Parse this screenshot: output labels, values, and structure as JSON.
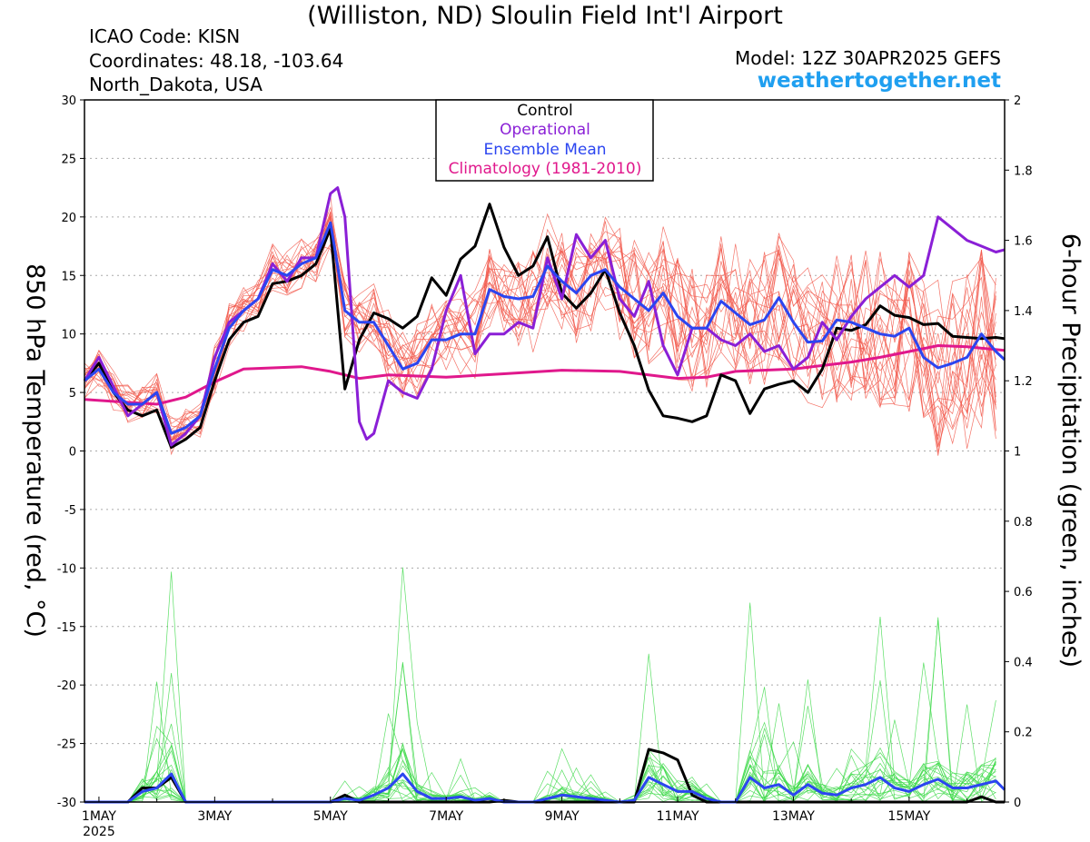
{
  "header": {
    "title": "(Williston, ND) Sloulin Field Int'l Airport",
    "icao": "ICAO Code: KISN",
    "coordinates": "Coordinates: 48.18, -103.64",
    "region": "North_Dakota, USA",
    "model": "Model: 12Z 30APR2025 GEFS",
    "site": "weathertogether.net"
  },
  "colors": {
    "control": "#000000",
    "operational": "#8a1fd6",
    "ensemble_mean": "#2b45f0",
    "climatology": "#e0188c",
    "member_temp": "#f25a4e",
    "member_precip": "#3ed94a",
    "site": "#1f9ff0"
  },
  "chart_data": {
    "type": "line",
    "x_axis": {
      "tick_labels": [
        "1MAY",
        "3MAY",
        "5MAY",
        "7MAY",
        "9MAY",
        "11MAY",
        "13MAY",
        "15MAY"
      ],
      "tick_days": [
        1,
        3,
        5,
        7,
        9,
        11,
        13,
        15
      ],
      "sub_label": "2025",
      "range_days": [
        0.75,
        16.65
      ]
    },
    "y_left": {
      "label": "850 hPa Temperature (red, °C)",
      "range": [
        -30,
        30
      ],
      "ticks": [
        30,
        25,
        20,
        15,
        10,
        5,
        0,
        -5,
        -10,
        -15,
        -20,
        -25,
        -30
      ]
    },
    "y_right": {
      "label": "6-hour Precipitation (green, inches)",
      "range": [
        0,
        2
      ],
      "ticks": [
        2,
        1.8,
        1.6,
        1.4,
        1.2,
        1,
        0.8,
        0.6,
        0.4,
        0.2,
        0
      ]
    },
    "grid": true,
    "legend": {
      "position": "top-center",
      "entries": [
        "Control",
        "Operational",
        "Ensemble Mean",
        "Climatology (1981-2010)"
      ]
    },
    "series": [
      {
        "name": "Control",
        "axis": "left",
        "x": [
          0.75,
          1.0,
          1.25,
          1.5,
          1.75,
          2.0,
          2.25,
          2.5,
          2.75,
          3.0,
          3.25,
          3.5,
          3.75,
          4.0,
          4.25,
          4.5,
          4.75,
          5.0,
          5.25,
          5.5,
          5.75,
          6.0,
          6.25,
          6.5,
          6.75,
          7.0,
          7.25,
          7.5,
          7.75,
          8.0,
          8.25,
          8.5,
          8.75,
          9.0,
          9.25,
          9.5,
          9.75,
          10.0,
          10.25,
          10.5,
          10.75,
          11.0,
          11.25,
          11.5,
          11.75,
          12.0,
          12.25,
          12.5,
          12.75,
          13.0,
          13.25,
          13.5,
          13.75,
          14.0,
          14.25,
          14.5,
          14.75,
          15.0,
          15.25,
          15.5,
          15.75,
          16.0,
          16.25,
          16.5,
          16.65
        ],
        "y": [
          6,
          7.5,
          5,
          3.5,
          3,
          3.5,
          0.3,
          1,
          2,
          6,
          9.5,
          11,
          11.5,
          14.3,
          14.5,
          15,
          16,
          19,
          5.3,
          9.5,
          11.8,
          11.3,
          10.5,
          11.5,
          14.8,
          13.3,
          16.4,
          17.5,
          21.1,
          17.4,
          15,
          15.8,
          18.3,
          13.5,
          12.2,
          13.5,
          15.5,
          11.8,
          9,
          5.2,
          3,
          2.8,
          2.5,
          3,
          6.5,
          6,
          3.2,
          5.3,
          5.7,
          6,
          5,
          7,
          10.5,
          10.3,
          10.8,
          12.4,
          11.6,
          11.4,
          10.8,
          10.9,
          9.8,
          9.7,
          9.6,
          9.7,
          9.6
        ]
      },
      {
        "name": "Operational",
        "axis": "left",
        "x": [
          0.75,
          1.0,
          1.25,
          1.5,
          1.75,
          2.0,
          2.25,
          2.5,
          2.75,
          3.0,
          3.25,
          3.5,
          3.75,
          4.0,
          4.25,
          4.5,
          4.75,
          5.0,
          5.125,
          5.25,
          5.5,
          5.625,
          5.75,
          6.0,
          6.25,
          6.5,
          6.75,
          7.0,
          7.25,
          7.5,
          7.75,
          8.0,
          8.25,
          8.5,
          8.75,
          9.0,
          9.25,
          9.5,
          9.75,
          10.0,
          10.25,
          10.5,
          10.75,
          11.0,
          11.25,
          11.5,
          11.75,
          12.0,
          12.25,
          12.5,
          12.75,
          13.0,
          13.25,
          13.5,
          13.75,
          14.0,
          14.25,
          14.5,
          14.75,
          15.0,
          15.25,
          15.5,
          15.75,
          16.0,
          16.25,
          16.5,
          16.65
        ],
        "y": [
          6,
          8,
          5.5,
          3,
          4,
          5,
          0.5,
          1.5,
          3,
          8,
          11,
          12,
          13,
          16,
          14.5,
          16.5,
          16.5,
          22,
          22.5,
          20,
          2.5,
          1,
          1.5,
          6,
          5,
          4.5,
          7,
          12,
          15,
          8.3,
          10,
          10,
          11,
          10.5,
          16.5,
          13,
          18.5,
          16.5,
          18,
          13,
          11.5,
          14.5,
          9,
          6.5,
          10.5,
          10.5,
          9.5,
          9,
          10,
          8.5,
          9,
          7,
          8,
          11,
          9.5,
          11.5,
          13,
          14,
          15,
          14,
          15,
          20,
          19,
          18,
          17.5,
          17,
          17.2
        ]
      },
      {
        "name": "Ensemble Mean",
        "axis": "left",
        "x": [
          0.75,
          1.0,
          1.25,
          1.5,
          1.75,
          2.0,
          2.25,
          2.5,
          2.75,
          3.0,
          3.25,
          3.5,
          3.75,
          4.0,
          4.25,
          4.5,
          4.75,
          5.0,
          5.25,
          5.5,
          5.75,
          6.0,
          6.25,
          6.5,
          6.75,
          7.0,
          7.25,
          7.5,
          7.75,
          8.0,
          8.25,
          8.5,
          8.75,
          9.0,
          9.25,
          9.5,
          9.75,
          10.0,
          10.25,
          10.5,
          10.75,
          11.0,
          11.25,
          11.5,
          11.75,
          12.0,
          12.25,
          12.5,
          12.75,
          13.0,
          13.25,
          13.5,
          13.75,
          14.0,
          14.25,
          14.5,
          14.75,
          15.0,
          15.25,
          15.5,
          15.75,
          16.0,
          16.25,
          16.5,
          16.65
        ],
        "y": [
          6,
          7,
          5,
          4,
          4,
          5,
          1.5,
          2,
          3,
          7,
          10.5,
          12,
          13,
          15.5,
          15,
          16,
          16.5,
          19.5,
          12,
          11,
          11,
          9,
          7,
          7.5,
          9.5,
          9.5,
          10,
          10,
          13.8,
          13.2,
          13,
          13.2,
          15.8,
          14.5,
          13.5,
          15,
          15.5,
          14,
          13,
          12,
          13.5,
          11.5,
          10.5,
          10.5,
          12.8,
          11.8,
          10.8,
          11.2,
          13.1,
          11,
          9.3,
          9.4,
          11.2,
          11,
          10.5,
          10,
          9.8,
          10.5,
          8,
          7.1,
          7.5,
          8,
          10,
          8.5,
          7.8
        ]
      },
      {
        "name": "Climatology (1981-2010)",
        "axis": "left",
        "x": [
          0.75,
          2.0,
          2.5,
          3.0,
          3.5,
          4.0,
          4.5,
          5.0,
          5.5,
          6.0,
          7.0,
          8.0,
          9.0,
          10.0,
          11.0,
          11.5,
          12.0,
          13.0,
          14.0,
          14.5,
          15.0,
          15.5,
          16.0,
          16.65
        ],
        "y": [
          4.4,
          4,
          4.6,
          5.9,
          7,
          7.1,
          7.2,
          6.8,
          6.2,
          6.5,
          6.3,
          6.6,
          6.9,
          6.8,
          6.2,
          6.3,
          6.8,
          7,
          7.6,
          8,
          8.5,
          9,
          8.9,
          8.6
        ]
      },
      {
        "name": "Control",
        "axis": "right",
        "x": [
          0.75,
          1.5,
          1.75,
          2.0,
          2.25,
          2.5,
          4.75,
          5.0,
          5.25,
          5.5,
          5.75,
          7.5,
          7.75,
          8.0,
          8.25,
          10.25,
          10.5,
          10.75,
          11.0,
          11.25,
          11.5,
          12.0,
          16.0,
          16.25,
          16.5,
          16.65
        ],
        "y": [
          0,
          0,
          0.04,
          0.04,
          0.07,
          0,
          0,
          0,
          0.02,
          0,
          0,
          0,
          0,
          0.005,
          0,
          0,
          0.15,
          0.14,
          0.12,
          0.02,
          0,
          0,
          0,
          0.015,
          0,
          0
        ]
      },
      {
        "name": "Ensemble Mean",
        "axis": "right",
        "x": [
          0.75,
          1.5,
          1.75,
          2.0,
          2.25,
          2.5,
          4.75,
          5.0,
          5.25,
          5.5,
          5.75,
          6.0,
          6.25,
          6.5,
          6.75,
          7.0,
          7.25,
          7.5,
          7.75,
          8.0,
          8.5,
          9.0,
          9.5,
          10.0,
          10.25,
          10.5,
          10.75,
          11.0,
          11.25,
          11.5,
          11.75,
          12.0,
          12.25,
          12.5,
          12.75,
          13.0,
          13.25,
          13.5,
          13.75,
          14.0,
          14.25,
          14.5,
          14.75,
          15.0,
          15.25,
          15.5,
          15.75,
          16.0,
          16.25,
          16.5,
          16.65
        ],
        "y": [
          0,
          0,
          0.03,
          0.04,
          0.08,
          0,
          0,
          0,
          0.01,
          0.005,
          0.02,
          0.04,
          0.08,
          0.03,
          0.01,
          0.01,
          0.015,
          0.005,
          0.01,
          0,
          0,
          0.02,
          0.01,
          0,
          0.005,
          0.07,
          0.05,
          0.03,
          0.03,
          0.01,
          0,
          0,
          0.07,
          0.04,
          0.05,
          0.02,
          0.05,
          0.025,
          0.02,
          0.04,
          0.05,
          0.07,
          0.04,
          0.03,
          0.05,
          0.065,
          0.04,
          0.04,
          0.05,
          0.06,
          0.035
        ]
      }
    ]
  }
}
